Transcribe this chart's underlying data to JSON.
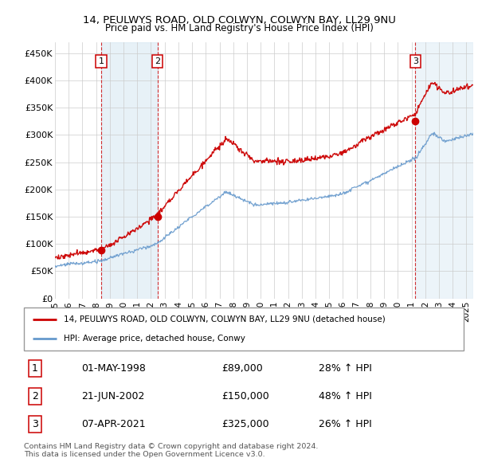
{
  "title1": "14, PEULWYS ROAD, OLD COLWYN, COLWYN BAY, LL29 9NU",
  "title2": "Price paid vs. HM Land Registry's House Price Index (HPI)",
  "ylim": [
    0,
    470000
  ],
  "yticks": [
    0,
    50000,
    100000,
    150000,
    200000,
    250000,
    300000,
    350000,
    400000,
    450000
  ],
  "ytick_labels": [
    "£0",
    "£50K",
    "£100K",
    "£150K",
    "£200K",
    "£250K",
    "£300K",
    "£350K",
    "£400K",
    "£450K"
  ],
  "legend_line1": "14, PEULWYS ROAD, OLD COLWYN, COLWYN BAY, LL29 9NU (detached house)",
  "legend_line2": "HPI: Average price, detached house, Conwy",
  "sale1_label": "1",
  "sale1_date": "01-MAY-1998",
  "sale1_price": "£89,000",
  "sale1_hpi": "28% ↑ HPI",
  "sale2_label": "2",
  "sale2_date": "21-JUN-2002",
  "sale2_price": "£150,000",
  "sale2_hpi": "48% ↑ HPI",
  "sale3_label": "3",
  "sale3_date": "07-APR-2021",
  "sale3_price": "£325,000",
  "sale3_hpi": "26% ↑ HPI",
  "footnote1": "Contains HM Land Registry data © Crown copyright and database right 2024.",
  "footnote2": "This data is licensed under the Open Government Licence v3.0.",
  "red_color": "#cc0000",
  "blue_color": "#6699cc",
  "sale1_x": 1998.37,
  "sale1_y": 89000,
  "sale2_x": 2002.47,
  "sale2_y": 150000,
  "sale3_x": 2021.27,
  "sale3_y": 325000,
  "xlim_left": 1995.0,
  "xlim_right": 2025.5
}
